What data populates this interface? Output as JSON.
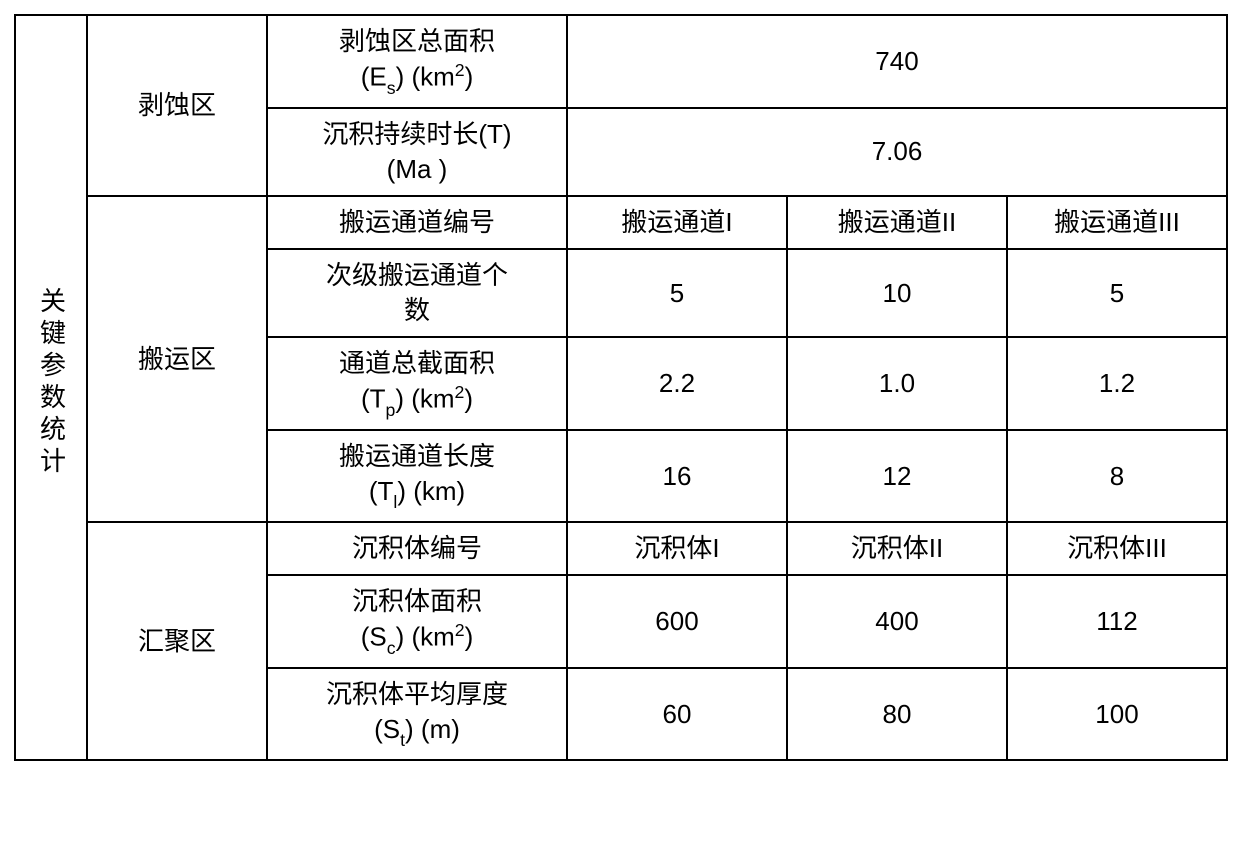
{
  "table": {
    "sidebar_title": "关键参数统计",
    "sections": {
      "erosion": {
        "label": "剥蚀区",
        "rows": {
          "total_area": {
            "label_html": "剥蚀区总面积<br>(E<sub>s</sub>) (km<sup>2</sup>)",
            "value": "740"
          },
          "duration": {
            "label_html": "沉积持续时长(T)<br>(Ma )",
            "value": "7.06"
          }
        }
      },
      "transport": {
        "label": "搬运区",
        "header": {
          "label": "搬运通道编号",
          "c1": "搬运通道I",
          "c2": "搬运通道II",
          "c3": "搬运通道III"
        },
        "rows": {
          "sub_channels": {
            "label_html": "次级搬运通道个<br>数",
            "v1": "5",
            "v2": "10",
            "v3": "5"
          },
          "cross_area": {
            "label_html": "通道总截面积<br>(T<sub>p</sub>) (km<sup>2</sup>)",
            "v1": "2.2",
            "v2": "1.0",
            "v3": "1.2"
          },
          "length": {
            "label_html": "搬运通道长度<br>(T<sub>l</sub>) (km)",
            "v1": "16",
            "v2": "12",
            "v3": "8"
          }
        }
      },
      "sink": {
        "label": "汇聚区",
        "header": {
          "label": "沉积体编号",
          "c1": "沉积体I",
          "c2": "沉积体II",
          "c3": "沉积体III"
        },
        "rows": {
          "area": {
            "label_html": "沉积体面积<br>(S<sub>c</sub>) (km<sup>2</sup>)",
            "v1": "600",
            "v2": "400",
            "v3": "112"
          },
          "thickness": {
            "label_html": "沉积体平均厚度<br>(S<sub>t</sub>) (m)",
            "v1": "60",
            "v2": "80",
            "v3": "100"
          }
        }
      }
    }
  }
}
